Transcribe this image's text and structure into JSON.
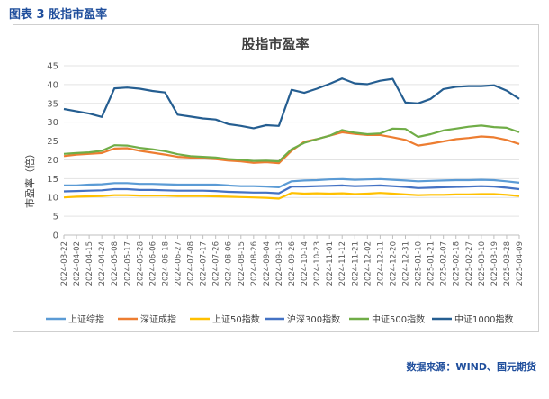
{
  "caption": "图表 3  股指市盈率",
  "source": "数据来源：WIND、国元期货",
  "chart_data": {
    "type": "line",
    "title": "股指市盈率",
    "ylabel": "市盈率（倍）",
    "xlabel": "",
    "ylim": [
      0,
      45
    ],
    "yticks": [
      0,
      5,
      10,
      15,
      20,
      25,
      30,
      35,
      40,
      45
    ],
    "grid": "horizontal",
    "legend": "bottom",
    "x_tick_labels": [
      "2024-03-22",
      "2024-04-02",
      "2024-04-15",
      "2024-04-24",
      "2024-05-08",
      "2024-05-17",
      "2024-05-28",
      "2024-06-06",
      "2024-06-18",
      "2024-06-27",
      "2024-07-08",
      "2024-07-17",
      "2024-07-26",
      "2024-08-06",
      "2024-08-15",
      "2024-08-26",
      "2024-09-04",
      "2024-09-13",
      "2024-09-26",
      "2024-10-14",
      "2024-10-23",
      "2024-11-01",
      "2024-11-12",
      "2024-11-21",
      "2024-12-02",
      "2024-12-11",
      "2024-12-20",
      "2024-12-31",
      "2025-01-10",
      "2025-01-21",
      "2025-02-07",
      "2025-02-18",
      "2025-02-27",
      "2025-03-10",
      "2025-03-19",
      "2025-03-28",
      "2025-04-09"
    ],
    "series": [
      {
        "name": "上证综指",
        "color": "#5b9bd5",
        "values": [
          13.2,
          13.2,
          13.4,
          13.5,
          13.8,
          13.8,
          13.6,
          13.6,
          13.5,
          13.4,
          13.4,
          13.4,
          13.4,
          13.2,
          13.0,
          13.0,
          12.9,
          12.7,
          14.3,
          14.5,
          14.6,
          14.8,
          14.9,
          14.7,
          14.8,
          14.9,
          14.7,
          14.5,
          14.3,
          14.4,
          14.5,
          14.6,
          14.6,
          14.7,
          14.6,
          14.3,
          13.9
        ]
      },
      {
        "name": "深证成指",
        "color": "#ed7d31",
        "values": [
          21.0,
          21.4,
          21.6,
          21.8,
          23.0,
          23.1,
          22.4,
          21.9,
          21.4,
          20.8,
          20.6,
          20.4,
          20.2,
          19.8,
          19.6,
          19.2,
          19.4,
          19.1,
          22.4,
          24.8,
          25.5,
          26.4,
          27.3,
          26.9,
          26.6,
          26.6,
          26.0,
          25.3,
          23.8,
          24.3,
          24.9,
          25.5,
          25.8,
          26.2,
          26.0,
          25.3,
          24.2
        ]
      },
      {
        "name": "上证50指数",
        "color": "#ffc000",
        "values": [
          10.0,
          10.2,
          10.3,
          10.4,
          10.6,
          10.6,
          10.5,
          10.5,
          10.5,
          10.4,
          10.4,
          10.4,
          10.3,
          10.2,
          10.1,
          10.0,
          9.9,
          9.7,
          11.2,
          11.0,
          11.1,
          11.0,
          11.1,
          10.9,
          11.0,
          11.2,
          11.0,
          10.8,
          10.6,
          10.7,
          10.7,
          10.8,
          10.8,
          10.9,
          10.9,
          10.7,
          10.4
        ]
      },
      {
        "name": "沪深300指数",
        "color": "#4472c4",
        "values": [
          11.6,
          11.7,
          11.8,
          11.9,
          12.2,
          12.2,
          12.0,
          12.0,
          11.9,
          11.8,
          11.8,
          11.8,
          11.7,
          11.5,
          11.4,
          11.3,
          11.3,
          11.1,
          12.9,
          12.9,
          13.0,
          13.1,
          13.2,
          13.0,
          13.1,
          13.2,
          13.0,
          12.8,
          12.5,
          12.6,
          12.7,
          12.8,
          12.9,
          13.0,
          12.9,
          12.6,
          12.2
        ]
      },
      {
        "name": "中证500指数",
        "color": "#70ad47",
        "values": [
          21.6,
          21.8,
          22.0,
          22.4,
          23.9,
          23.8,
          23.2,
          22.8,
          22.3,
          21.5,
          21.0,
          20.8,
          20.6,
          20.2,
          20.0,
          19.7,
          19.8,
          19.6,
          22.8,
          24.5,
          25.5,
          26.4,
          27.9,
          27.2,
          26.8,
          27.0,
          28.3,
          28.2,
          26.1,
          26.8,
          27.8,
          28.3,
          28.8,
          29.1,
          28.7,
          28.5,
          27.3
        ]
      },
      {
        "name": "中证1000指数",
        "color": "#255e91",
        "values": [
          33.5,
          32.9,
          32.3,
          31.4,
          39.0,
          39.2,
          38.9,
          38.3,
          37.9,
          32.0,
          31.5,
          31.0,
          30.7,
          29.5,
          29.0,
          28.4,
          29.2,
          29.0,
          38.6,
          37.8,
          38.9,
          40.2,
          41.6,
          40.3,
          40.1,
          41.0,
          41.5,
          35.2,
          35.0,
          36.2,
          38.8,
          39.4,
          39.6,
          39.6,
          39.8,
          38.4,
          36.2
        ]
      }
    ]
  }
}
